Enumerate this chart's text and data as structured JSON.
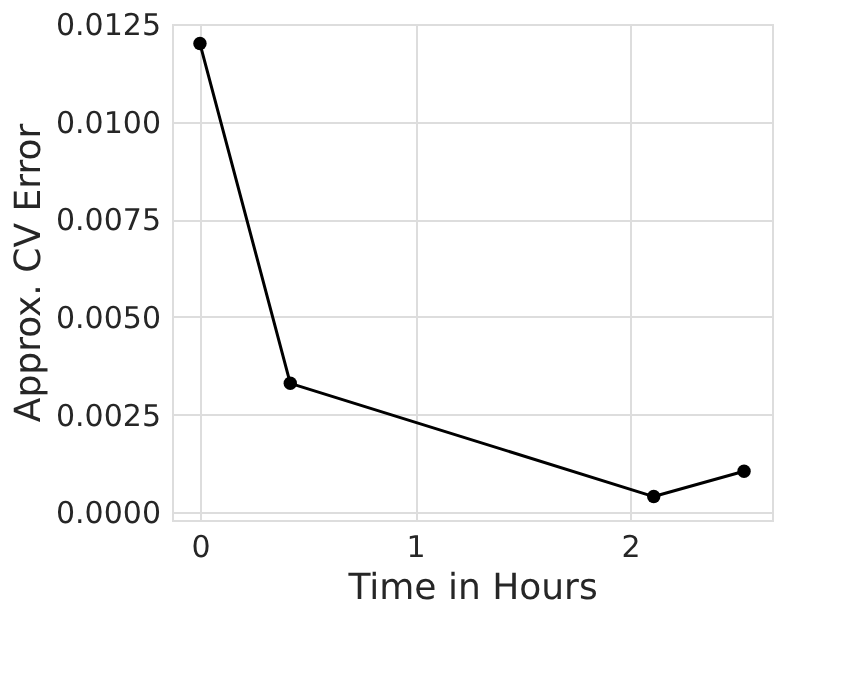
{
  "chart_data": {
    "type": "line",
    "xlabel": "Time in Hours",
    "ylabel": "Approx. CV Error",
    "x": [
      0,
      0.42,
      2.11,
      2.53
    ],
    "series": [
      {
        "color": "#000000",
        "values": [
          0.012,
          0.0033,
          0.0004,
          0.00105
        ]
      }
    ],
    "xlim": [
      -0.13,
      2.66
    ],
    "xticks": [
      0,
      1,
      2
    ],
    "ylim": [
      -0.0002,
      0.0125
    ],
    "yticks": [
      {
        "value": 0,
        "label": "0.0000"
      },
      {
        "value": 0.0025,
        "label": "0.0025"
      },
      {
        "value": 0.005,
        "label": "0.0050"
      },
      {
        "value": 0.0075,
        "label": "0.0075"
      },
      {
        "value": 0.01,
        "label": "0.0100"
      },
      {
        "value": 0.0125,
        "label": "0.0125"
      }
    ],
    "grid": true,
    "marker": "circle",
    "line_style": "solid"
  }
}
